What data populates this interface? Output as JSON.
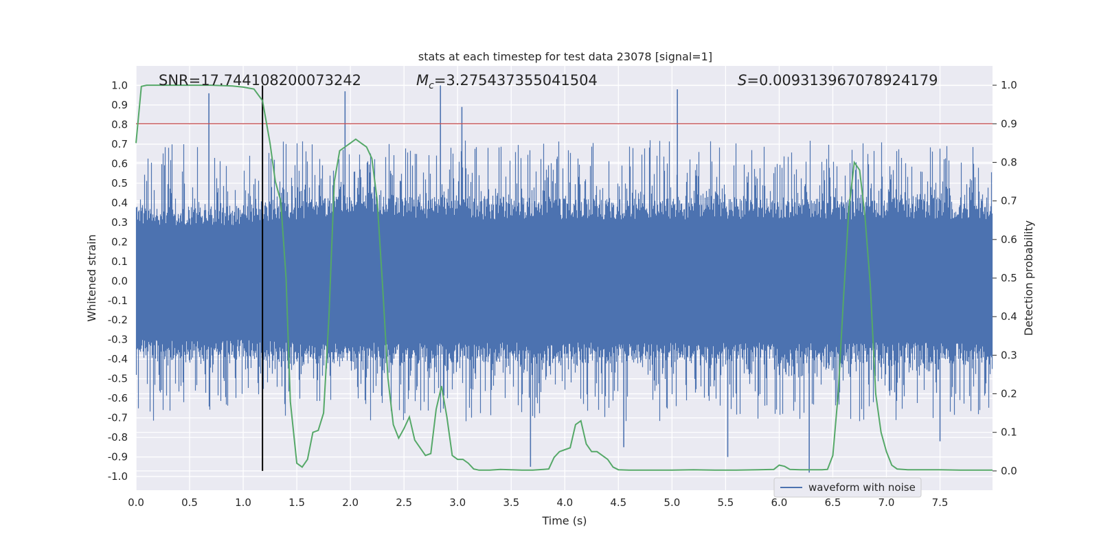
{
  "chart_data": {
    "type": "line",
    "title": "stats at each timestep for test data 23078 [signal=1]",
    "xlabel": "Time (s)",
    "ylabel_left": "Whitened strain",
    "ylabel_right": "Detection probability",
    "xlim": [
      0.0,
      7.99
    ],
    "ylim_left": [
      -1.07,
      1.1
    ],
    "ylim_right": [
      -0.05,
      1.05
    ],
    "x_ticks": [
      "0.0",
      "0.5",
      "1.0",
      "1.5",
      "2.0",
      "2.5",
      "3.0",
      "3.5",
      "4.0",
      "4.5",
      "5.0",
      "5.5",
      "6.0",
      "6.5",
      "7.0",
      "7.5"
    ],
    "y_ticks_left": [
      "-1.0",
      "-0.9",
      "-0.8",
      "-0.7",
      "-0.6",
      "-0.5",
      "-0.4",
      "-0.3",
      "-0.2",
      "-0.1",
      "0.0",
      "0.1",
      "0.2",
      "0.3",
      "0.4",
      "0.5",
      "0.6",
      "0.7",
      "0.8",
      "0.9",
      "1.0"
    ],
    "y_ticks_right": [
      "0.0",
      "0.1",
      "0.2",
      "0.3",
      "0.4",
      "0.5",
      "0.6",
      "0.7",
      "0.8",
      "0.9",
      "1.0"
    ],
    "grid": true,
    "legend": {
      "position": "lower-right",
      "entries": [
        "waveform with noise"
      ]
    },
    "annotations": {
      "snr": "SNR=17.744108200073242",
      "mc_symbol": "M",
      "mc_subscript": "c",
      "mc_value": "=3.275437355041504",
      "s_symbol": "S",
      "s_value": "=0.009313967078924179"
    },
    "threshold": {
      "axis": "right",
      "value": 0.9,
      "color": "#c44e52"
    },
    "merger_time": 1.18,
    "colors": {
      "waveform": "#4c72b0",
      "probability": "#55a868",
      "threshold": "#c44e52",
      "marker": "#000000",
      "background": "#eaeaf2"
    },
    "series": [
      {
        "name": "waveform with noise",
        "axis": "left",
        "sample_rate": 2048,
        "envelope_upper": [
          [
            0.0,
            0.38
          ],
          [
            1.0,
            0.38
          ],
          [
            1.15,
            0.4
          ],
          [
            1.5,
            0.42
          ],
          [
            2.0,
            0.45
          ],
          [
            3.0,
            0.42
          ],
          [
            4.0,
            0.42
          ],
          [
            5.0,
            0.42
          ],
          [
            6.0,
            0.42
          ],
          [
            7.0,
            0.42
          ],
          [
            7.99,
            0.42
          ]
        ],
        "envelope_lower": [
          [
            0.0,
            -0.4
          ],
          [
            1.0,
            -0.4
          ],
          [
            1.5,
            -0.42
          ],
          [
            2.0,
            -0.42
          ],
          [
            3.0,
            -0.42
          ],
          [
            4.0,
            -0.42
          ],
          [
            5.0,
            -0.42
          ],
          [
            6.0,
            -0.42
          ],
          [
            7.0,
            -0.42
          ],
          [
            7.99,
            -0.42
          ]
        ],
        "peaks": [
          [
            0.68,
            0.96
          ],
          [
            1.95,
            0.97
          ],
          [
            2.84,
            1.0
          ],
          [
            3.04,
            0.89
          ],
          [
            5.05,
            0.98
          ],
          [
            6.28,
            -0.98
          ],
          [
            3.68,
            -0.95
          ],
          [
            4.55,
            -0.85
          ],
          [
            5.52,
            -0.9
          ],
          [
            7.5,
            -0.82
          ]
        ]
      },
      {
        "name": "",
        "axis": "right",
        "x": [
          0.0,
          0.05,
          0.1,
          0.2,
          0.3,
          0.5,
          0.7,
          0.9,
          1.0,
          1.1,
          1.18,
          1.25,
          1.3,
          1.35,
          1.4,
          1.44,
          1.5,
          1.55,
          1.6,
          1.65,
          1.7,
          1.75,
          1.8,
          1.85,
          1.9,
          1.95,
          2.0,
          2.05,
          2.1,
          2.15,
          2.2,
          2.25,
          2.3,
          2.35,
          2.4,
          2.45,
          2.5,
          2.55,
          2.6,
          2.7,
          2.75,
          2.8,
          2.85,
          2.9,
          2.95,
          3.0,
          3.05,
          3.1,
          3.15,
          3.2,
          3.3,
          3.4,
          3.5,
          3.6,
          3.7,
          3.8,
          3.85,
          3.9,
          3.95,
          4.0,
          4.05,
          4.1,
          4.15,
          4.2,
          4.25,
          4.3,
          4.35,
          4.4,
          4.45,
          4.5,
          4.6,
          4.8,
          5.0,
          5.2,
          5.4,
          5.6,
          5.8,
          5.95,
          6.0,
          6.05,
          6.1,
          6.2,
          6.3,
          6.4,
          6.45,
          6.5,
          6.55,
          6.6,
          6.65,
          6.7,
          6.75,
          6.8,
          6.85,
          6.9,
          6.95,
          7.0,
          7.05,
          7.1,
          7.2,
          7.3,
          7.5,
          7.7,
          7.9,
          7.99
        ],
        "values": [
          0.85,
          0.997,
          1.0,
          1.0,
          1.0,
          1.0,
          1.0,
          0.998,
          0.995,
          0.99,
          0.96,
          0.85,
          0.75,
          0.7,
          0.5,
          0.18,
          0.02,
          0.01,
          0.03,
          0.1,
          0.105,
          0.15,
          0.4,
          0.75,
          0.83,
          0.84,
          0.85,
          0.86,
          0.85,
          0.84,
          0.81,
          0.7,
          0.48,
          0.24,
          0.12,
          0.085,
          0.11,
          0.14,
          0.08,
          0.04,
          0.045,
          0.16,
          0.22,
          0.14,
          0.04,
          0.03,
          0.03,
          0.02,
          0.005,
          0.002,
          0.002,
          0.004,
          0.003,
          0.002,
          0.002,
          0.004,
          0.005,
          0.035,
          0.05,
          0.055,
          0.06,
          0.12,
          0.13,
          0.07,
          0.05,
          0.05,
          0.04,
          0.03,
          0.01,
          0.003,
          0.002,
          0.002,
          0.002,
          0.003,
          0.002,
          0.002,
          0.003,
          0.004,
          0.015,
          0.012,
          0.004,
          0.003,
          0.003,
          0.003,
          0.004,
          0.04,
          0.2,
          0.45,
          0.68,
          0.8,
          0.78,
          0.66,
          0.48,
          0.2,
          0.1,
          0.05,
          0.015,
          0.005,
          0.003,
          0.003,
          0.003,
          0.002,
          0.002,
          0.002
        ]
      }
    ]
  }
}
